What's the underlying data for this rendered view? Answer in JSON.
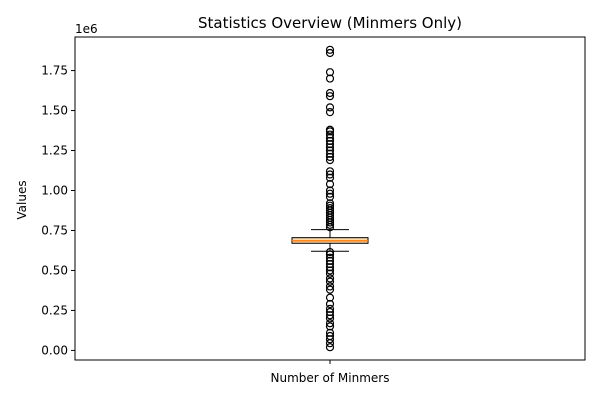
{
  "chart_data": {
    "type": "box",
    "title": "Statistics Overview (Minmers Only)",
    "xlabel": "",
    "ylabel": "Values",
    "categories": [
      "Number of Minmers"
    ],
    "y_offset_label": "1e6",
    "y_scale_factor": 1000000,
    "ylim": [
      -60000,
      1960000
    ],
    "yticks": [
      0,
      250000,
      500000,
      750000,
      1000000,
      1250000,
      1500000,
      1750000
    ],
    "ytick_labels": [
      "0.00",
      "0.25",
      "0.50",
      "0.75",
      "1.00",
      "1.25",
      "1.50",
      "1.75"
    ],
    "box": {
      "whisker_low": 620000,
      "q1": 670000,
      "median": 685000,
      "q3": 705000,
      "whisker_high": 755000,
      "fill_color": "#fdd9a8",
      "median_color": "#ff7f0e"
    },
    "outliers": [
      20000,
      45000,
      70000,
      90000,
      110000,
      150000,
      170000,
      200000,
      220000,
      240000,
      260000,
      290000,
      330000,
      380000,
      400000,
      430000,
      450000,
      480000,
      500000,
      520000,
      540000,
      560000,
      580000,
      600000,
      615000,
      770000,
      785000,
      800000,
      815000,
      830000,
      845000,
      860000,
      875000,
      890000,
      905000,
      920000,
      960000,
      980000,
      1000000,
      1040000,
      1080000,
      1100000,
      1120000,
      1190000,
      1210000,
      1230000,
      1250000,
      1270000,
      1290000,
      1310000,
      1330000,
      1350000,
      1370000,
      1380000,
      1490000,
      1520000,
      1590000,
      1610000,
      1700000,
      1740000,
      1860000,
      1880000
    ]
  }
}
